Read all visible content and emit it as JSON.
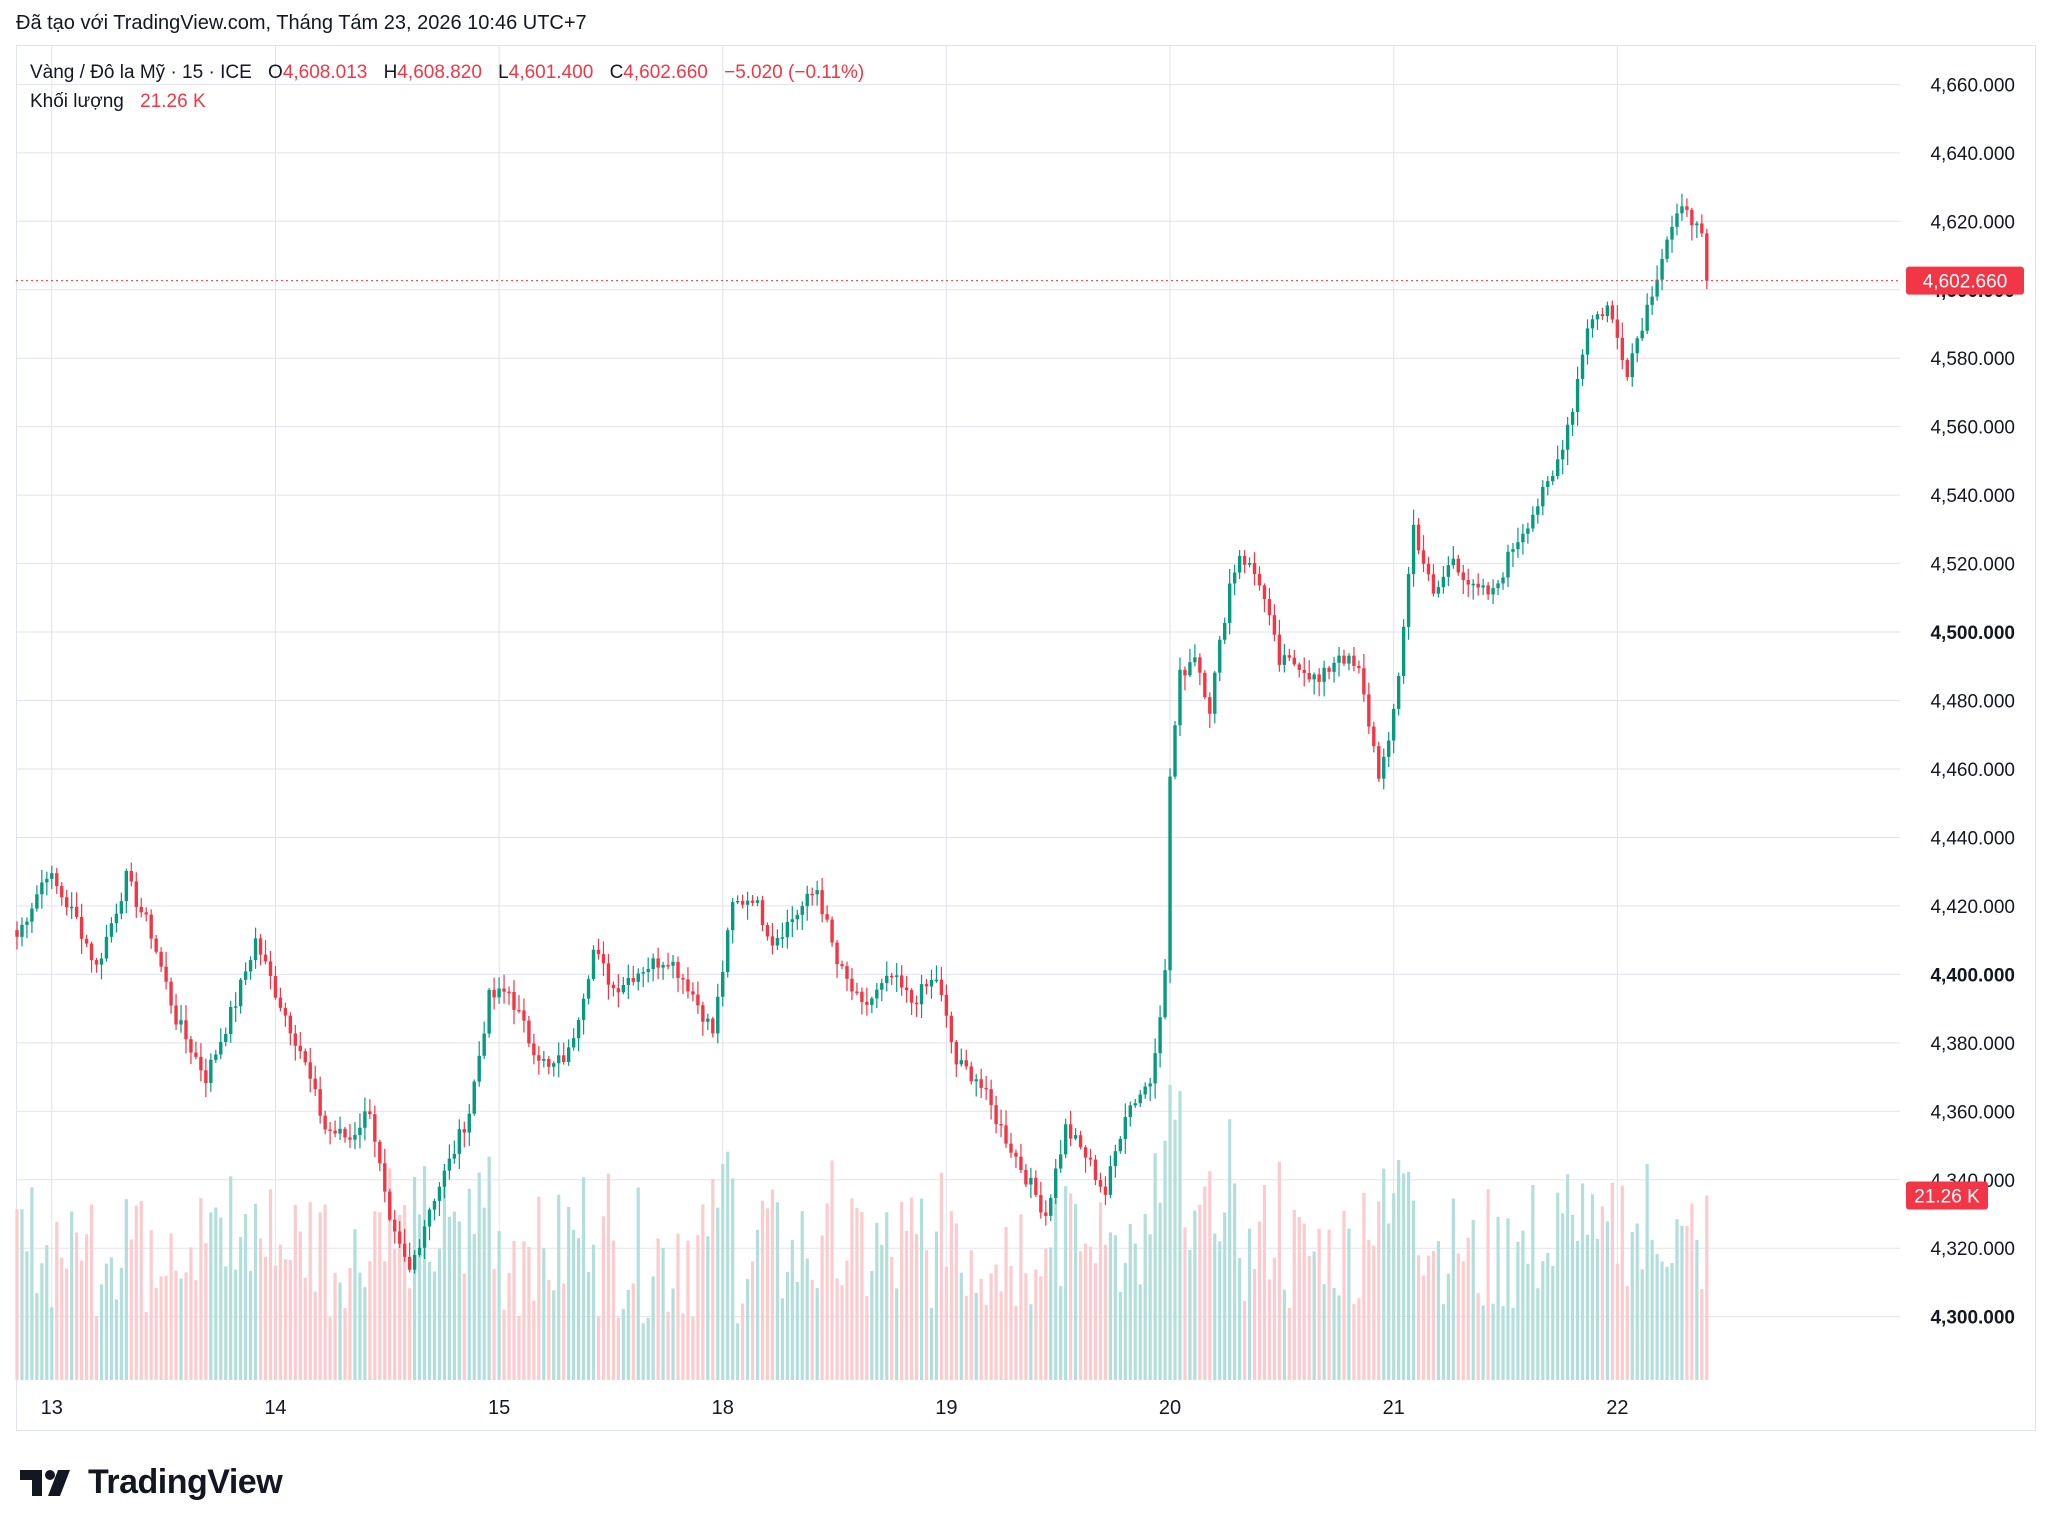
{
  "header": {
    "caption": "Đã tạo với TradingView.com, Tháng Tám 23, 2026 10:46 UTC+7"
  },
  "legend": {
    "symbol": "Vàng / Đô la Mỹ · 15 · ICE",
    "o_label": "O",
    "o_value": "4,608.013",
    "h_label": "H",
    "h_value": "4,608.820",
    "l_label": "L",
    "l_value": "4,601.400",
    "c_label": "C",
    "c_value": "4,602.660",
    "change": "−5.020 (−0.11%)",
    "volume_label": "Khối lượng",
    "volume_value": "21.26 K"
  },
  "colors": {
    "up": "#089981",
    "down": "#f23645",
    "up_vol": "#b2dfdb",
    "down_vol": "#fccbcd",
    "grid": "#e0e3eb",
    "text": "#131722"
  },
  "footer": {
    "brand": "TradingView",
    "logo_icon": "tradingview-logo-icon"
  },
  "chart_data": {
    "type": "candlestick",
    "symbol": "Vàng / Đô la Mỹ",
    "interval": "15",
    "exchange": "ICE",
    "ylim": [
      4281.5,
      4671.5
    ],
    "y_ticks": [
      "4,660.000",
      "4,640.000",
      "4,620.000",
      "4,600.000",
      "4,580.000",
      "4,560.000",
      "4,540.000",
      "4,520.000",
      "4,500.000",
      "4,480.000",
      "4,460.000",
      "4,440.000",
      "4,420.000",
      "4,400.000",
      "4,380.000",
      "4,360.000",
      "4,340.000",
      "4,320.000",
      "4,300.000"
    ],
    "y_tick_values": [
      4660,
      4640,
      4620,
      4600,
      4580,
      4560,
      4540,
      4520,
      4500,
      4480,
      4460,
      4440,
      4420,
      4400,
      4380,
      4360,
      4340,
      4320,
      4300
    ],
    "x_ticks": [
      {
        "label": "13",
        "bar": 7
      },
      {
        "label": "14",
        "bar": 52
      },
      {
        "label": "15",
        "bar": 97
      },
      {
        "label": "18",
        "bar": 142
      },
      {
        "label": "19",
        "bar": 187
      },
      {
        "label": "20",
        "bar": 232
      },
      {
        "label": "21",
        "bar": 277
      },
      {
        "label": "22",
        "bar": 322
      }
    ],
    "anchors": [
      [
        0,
        4411
      ],
      [
        6,
        4430
      ],
      [
        12,
        4416
      ],
      [
        16,
        4402
      ],
      [
        22,
        4428
      ],
      [
        27,
        4412
      ],
      [
        32,
        4387
      ],
      [
        38,
        4370
      ],
      [
        44,
        4392
      ],
      [
        48,
        4410
      ],
      [
        52,
        4395
      ],
      [
        57,
        4378
      ],
      [
        62,
        4355
      ],
      [
        67,
        4352
      ],
      [
        71,
        4361
      ],
      [
        75,
        4326
      ],
      [
        79,
        4313
      ],
      [
        83,
        4332
      ],
      [
        87,
        4345
      ],
      [
        91,
        4360
      ],
      [
        95,
        4393
      ],
      [
        99,
        4395
      ],
      [
        103,
        4381
      ],
      [
        107,
        4372
      ],
      [
        111,
        4377
      ],
      [
        116,
        4407
      ],
      [
        120,
        4396
      ],
      [
        126,
        4402
      ],
      [
        131,
        4405
      ],
      [
        135,
        4397
      ],
      [
        140,
        4383
      ],
      [
        144,
        4420
      ],
      [
        148,
        4423
      ],
      [
        152,
        4410
      ],
      [
        157,
        4418
      ],
      [
        161,
        4425
      ],
      [
        165,
        4403
      ],
      [
        170,
        4390
      ],
      [
        176,
        4399
      ],
      [
        180,
        4392
      ],
      [
        185,
        4399
      ],
      [
        189,
        4374
      ],
      [
        193,
        4370
      ],
      [
        198,
        4355
      ],
      [
        203,
        4341
      ],
      [
        207,
        4330
      ],
      [
        211,
        4355
      ],
      [
        215,
        4347
      ],
      [
        219,
        4336
      ],
      [
        223,
        4360
      ],
      [
        228,
        4369
      ],
      [
        231,
        4400
      ],
      [
        232,
        4458
      ],
      [
        234,
        4487
      ],
      [
        237,
        4494
      ],
      [
        240,
        4478
      ],
      [
        244,
        4514
      ],
      [
        246,
        4523
      ],
      [
        250,
        4515
      ],
      [
        254,
        4491
      ],
      [
        258,
        4491
      ],
      [
        262,
        4485
      ],
      [
        266,
        4494
      ],
      [
        270,
        4488
      ],
      [
        274,
        4459
      ],
      [
        276,
        4466
      ],
      [
        278,
        4488
      ],
      [
        281,
        4531
      ],
      [
        285,
        4510
      ],
      [
        289,
        4522
      ],
      [
        293,
        4512
      ],
      [
        297,
        4511
      ],
      [
        301,
        4525
      ],
      [
        305,
        4535
      ],
      [
        309,
        4545
      ],
      [
        313,
        4566
      ],
      [
        316,
        4590
      ],
      [
        320,
        4595
      ],
      [
        324,
        4577
      ],
      [
        328,
        4595
      ],
      [
        332,
        4615
      ],
      [
        336,
        4625
      ],
      [
        339,
        4614
      ],
      [
        340,
        4603
      ]
    ],
    "last_price": 4602.66,
    "last_price_label": "4,602.660",
    "last_volume": 21.26,
    "last_volume_label": "21.26 K",
    "volume_unit": "K",
    "volume_range": [
      6,
      34
    ],
    "bars_count": 341,
    "grid": true
  }
}
